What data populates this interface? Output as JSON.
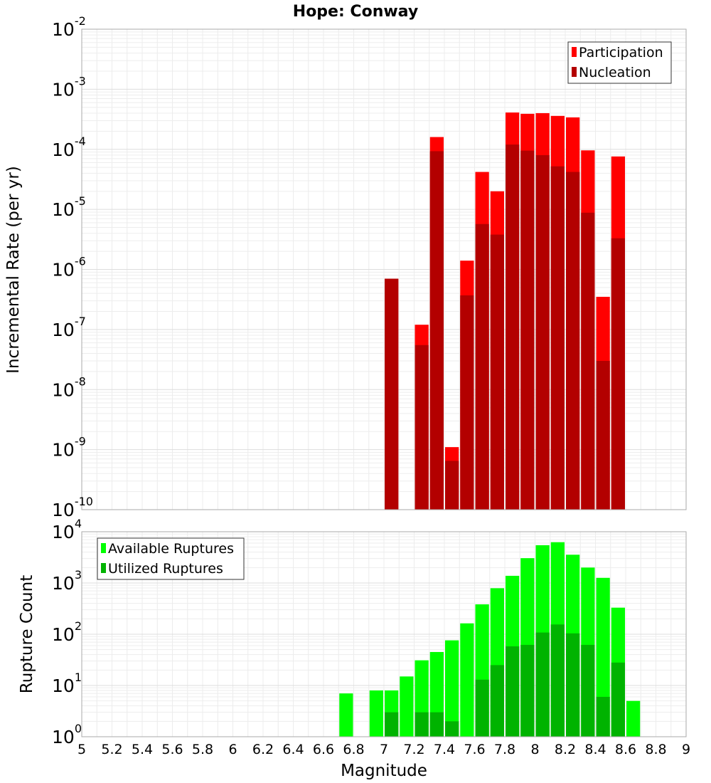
{
  "chart_data": [
    {
      "type": "bar",
      "title": "Hope: Conway",
      "xlabel": "Magnitude",
      "ylabel": "Incremental Rate (per yr)",
      "yscale": "log",
      "ylim_exp": [
        -10,
        -2
      ],
      "xlim": [
        5,
        9
      ],
      "bin_width": 0.1,
      "legend_position": "top-right",
      "colors": {
        "Participation": "#ff0000",
        "Nucleation": "#b30000"
      },
      "series": [
        {
          "name": "Participation",
          "x": [
            7.05,
            7.25,
            7.35,
            7.45,
            7.55,
            7.65,
            7.75,
            7.85,
            7.95,
            8.05,
            8.15,
            8.25,
            8.35,
            8.45,
            8.55
          ],
          "values": [
            7e-07,
            1.2e-07,
            0.00016,
            1.1e-09,
            1.4e-06,
            4.2e-05,
            2e-05,
            0.00041,
            0.00039,
            0.0004,
            0.00036,
            0.00034,
            9.6e-05,
            3.5e-07,
            7.6e-05
          ]
        },
        {
          "name": "Nucleation",
          "x": [
            7.05,
            7.25,
            7.35,
            7.45,
            7.55,
            7.65,
            7.75,
            7.85,
            7.95,
            8.05,
            8.15,
            8.25,
            8.35,
            8.45,
            8.55
          ],
          "values": [
            7e-07,
            5.5e-08,
            9.3e-05,
            6.5e-10,
            3.7e-07,
            5.7e-06,
            3.8e-06,
            0.00012,
            9.5e-05,
            8e-05,
            5.2e-05,
            4.2e-05,
            8.8e-06,
            3e-08,
            3.3e-06
          ]
        }
      ]
    },
    {
      "type": "bar",
      "title": "",
      "xlabel": "Magnitude",
      "ylabel": "Rupture Count",
      "yscale": "log",
      "ylim_exp": [
        0,
        4
      ],
      "xlim": [
        5,
        9
      ],
      "bin_width": 0.1,
      "legend_position": "top-left",
      "colors": {
        "Available Ruptures": "#00ff00",
        "Utilized Ruptures": "#00b300"
      },
      "series": [
        {
          "name": "Available Ruptures",
          "x": [
            6.75,
            6.95,
            7.05,
            7.15,
            7.25,
            7.35,
            7.45,
            7.55,
            7.65,
            7.75,
            7.85,
            7.95,
            8.05,
            8.15,
            8.25,
            8.35,
            8.45,
            8.55,
            8.65
          ],
          "values": [
            7,
            8,
            8,
            15,
            31,
            45,
            76,
            163,
            383,
            790,
            1380,
            3050,
            5460,
            6250,
            3560,
            2000,
            1260,
            330,
            5
          ]
        },
        {
          "name": "Utilized Ruptures",
          "x": [
            7.05,
            7.25,
            7.35,
            7.45,
            7.55,
            7.65,
            7.75,
            7.85,
            7.95,
            8.05,
            8.15,
            8.25,
            8.35,
            8.45,
            8.55
          ],
          "values": [
            3,
            3,
            3,
            2,
            1,
            13,
            25,
            58,
            62,
            108,
            155,
            104,
            62,
            6,
            28
          ]
        }
      ]
    }
  ],
  "xticks": [
    "5",
    "5.2",
    "5.4",
    "5.6",
    "5.8",
    "6",
    "6.2",
    "6.4",
    "6.6",
    "6.8",
    "7",
    "7.2",
    "7.4",
    "7.6",
    "7.8",
    "8",
    "8.2",
    "8.4",
    "8.6",
    "8.8",
    "9"
  ]
}
